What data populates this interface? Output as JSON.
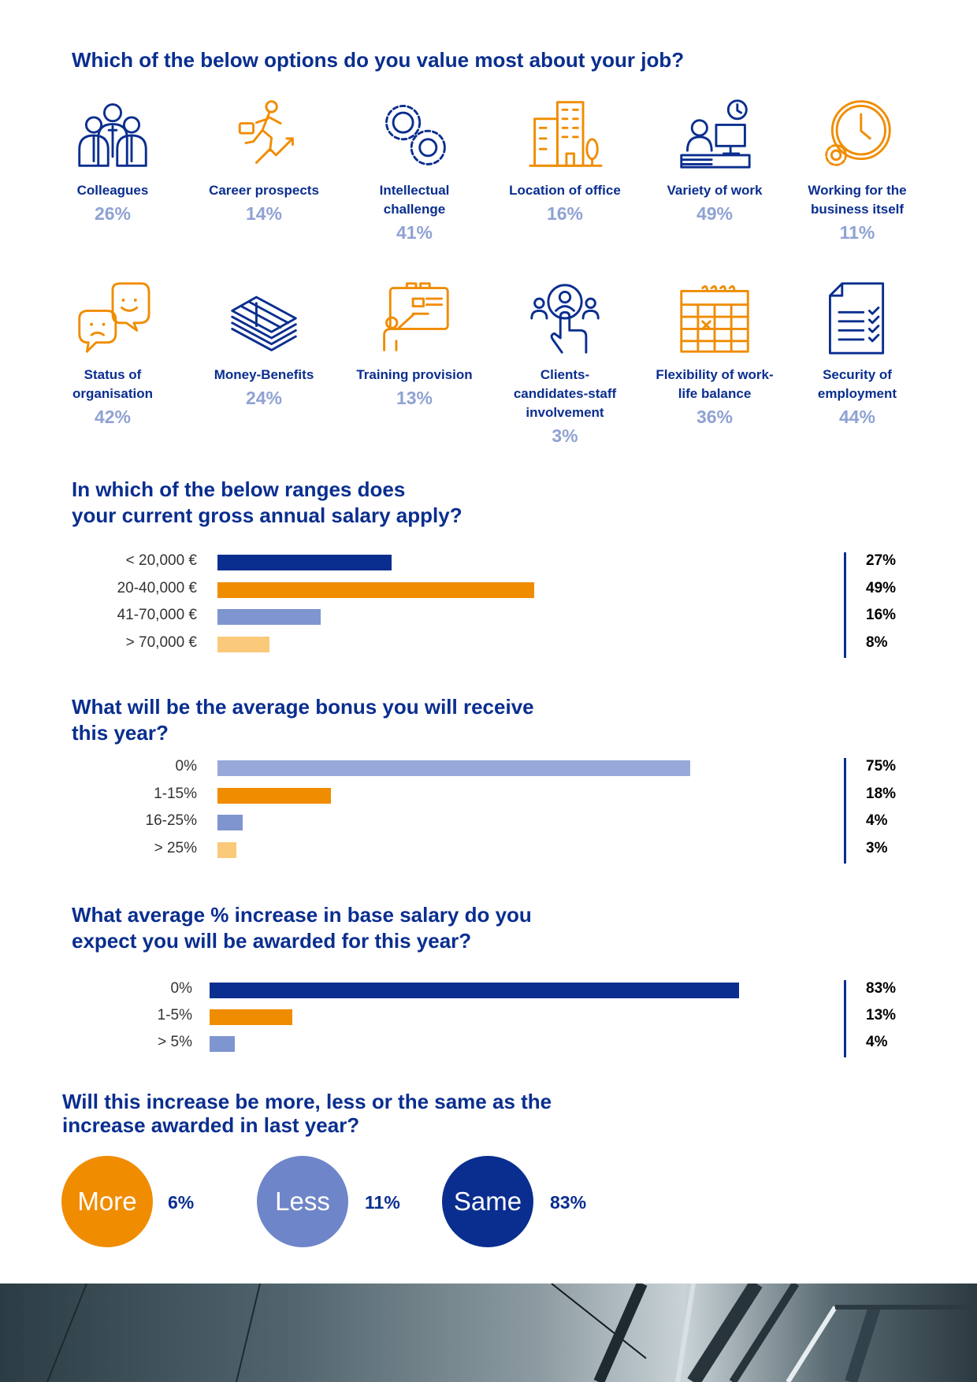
{
  "section_values": {
    "title": "Which of the below options do you value most about your job?",
    "items": [
      {
        "label": "Colleagues",
        "value": "26%",
        "icon": "team-icon",
        "color": "#0a2e8f"
      },
      {
        "label": "Career prospects",
        "value": "14%",
        "icon": "career-growth-icon",
        "color": "#f08c00"
      },
      {
        "label": "Intellectual challenge",
        "value": "41%",
        "icon": "gears-icon",
        "color": "#0a2e8f"
      },
      {
        "label": "Location of office",
        "value": "16%",
        "icon": "office-building-icon",
        "color": "#f08c00"
      },
      {
        "label": "Variety of work",
        "value": "49%",
        "icon": "desk-worker-icon",
        "color": "#0a2e8f"
      },
      {
        "label": "Working for the business itself",
        "value": "11%",
        "icon": "clock-gear-icon",
        "color": "#f08c00"
      },
      {
        "label": "Status of organisation",
        "value": "42%",
        "icon": "chat-faces-icon",
        "color": "#f08c00"
      },
      {
        "label": "Money-Benefits",
        "value": "24%",
        "icon": "money-stack-icon",
        "color": "#0a2e8f"
      },
      {
        "label": "Training provision",
        "value": "13%",
        "icon": "presentation-board-icon",
        "color": "#f08c00"
      },
      {
        "label": "Clients-candidates-staff involvement",
        "value": "3%",
        "icon": "touch-people-icon",
        "color": "#0a2e8f"
      },
      {
        "label": "Flexibility of work-life balance",
        "value": "36%",
        "icon": "calendar-icon",
        "color": "#f08c00"
      },
      {
        "label": "Security of employment",
        "value": "44%",
        "icon": "checklist-document-icon",
        "color": "#0a2e8f"
      }
    ]
  },
  "section_salary": {
    "title_line1": "In which of the below ranges does",
    "title_line2": "your current gross annual salary apply?"
  },
  "section_bonus": {
    "title_line1": "What will be the average bonus you will receive",
    "title_line2": "this year?"
  },
  "section_increase": {
    "title_line1": "What average % increase in base salary do you",
    "title_line2": "expect you will be awarded for this year?"
  },
  "section_compare": {
    "title_line1": "Will this increase be more, less or the same as the",
    "title_line2": "increase awarded in last year?",
    "items": [
      {
        "label": "More",
        "value": "6%",
        "color": "#f08c00"
      },
      {
        "label": "Less",
        "value": "11%",
        "color": "#6f85c9"
      },
      {
        "label": "Same",
        "value": "83%",
        "color": "#0a2e8f"
      }
    ]
  },
  "chart_data": [
    {
      "type": "bar",
      "orientation": "horizontal",
      "title": "In which of the below ranges does your current gross annual salary apply?",
      "categories": [
        "< 20,000 €",
        "20-40,000 €",
        "41-70,000 €",
        "> 70,000 €"
      ],
      "values": [
        27,
        49,
        16,
        8
      ],
      "value_labels": [
        "27%",
        "49%",
        "16%",
        "8%"
      ],
      "colors": [
        "#0a2e8f",
        "#f08c00",
        "#7f95cf",
        "#fbc97a"
      ],
      "xlim": [
        0,
        100
      ],
      "grid": false
    },
    {
      "type": "bar",
      "orientation": "horizontal",
      "title": "What will be the average bonus you will receive this year?",
      "categories": [
        "0%",
        "1-15%",
        "16-25%",
        "> 25%"
      ],
      "values": [
        75,
        18,
        4,
        3
      ],
      "value_labels": [
        "75%",
        "18%",
        "4%",
        "3%"
      ],
      "colors": [
        "#96a9d9",
        "#f08c00",
        "#7f95cf",
        "#fbc97a"
      ],
      "xlim": [
        0,
        100
      ],
      "grid": false
    },
    {
      "type": "bar",
      "orientation": "horizontal",
      "title": "What average % increase in base salary do you expect you will be awarded for this year?",
      "categories": [
        "0%",
        "1-5%",
        "> 5%"
      ],
      "values": [
        83,
        13,
        4
      ],
      "value_labels": [
        "83%",
        "13%",
        "4%"
      ],
      "colors": [
        "#0a2e8f",
        "#f08c00",
        "#7f95cf"
      ],
      "xlim": [
        0,
        100
      ],
      "grid": false
    },
    {
      "type": "pie",
      "title": "Will this increase be more, less or the same as the increase awarded in last year?",
      "categories": [
        "More",
        "Less",
        "Same"
      ],
      "values": [
        6,
        11,
        83
      ],
      "colors": [
        "#f08c00",
        "#6f85c9",
        "#0a2e8f"
      ]
    }
  ]
}
